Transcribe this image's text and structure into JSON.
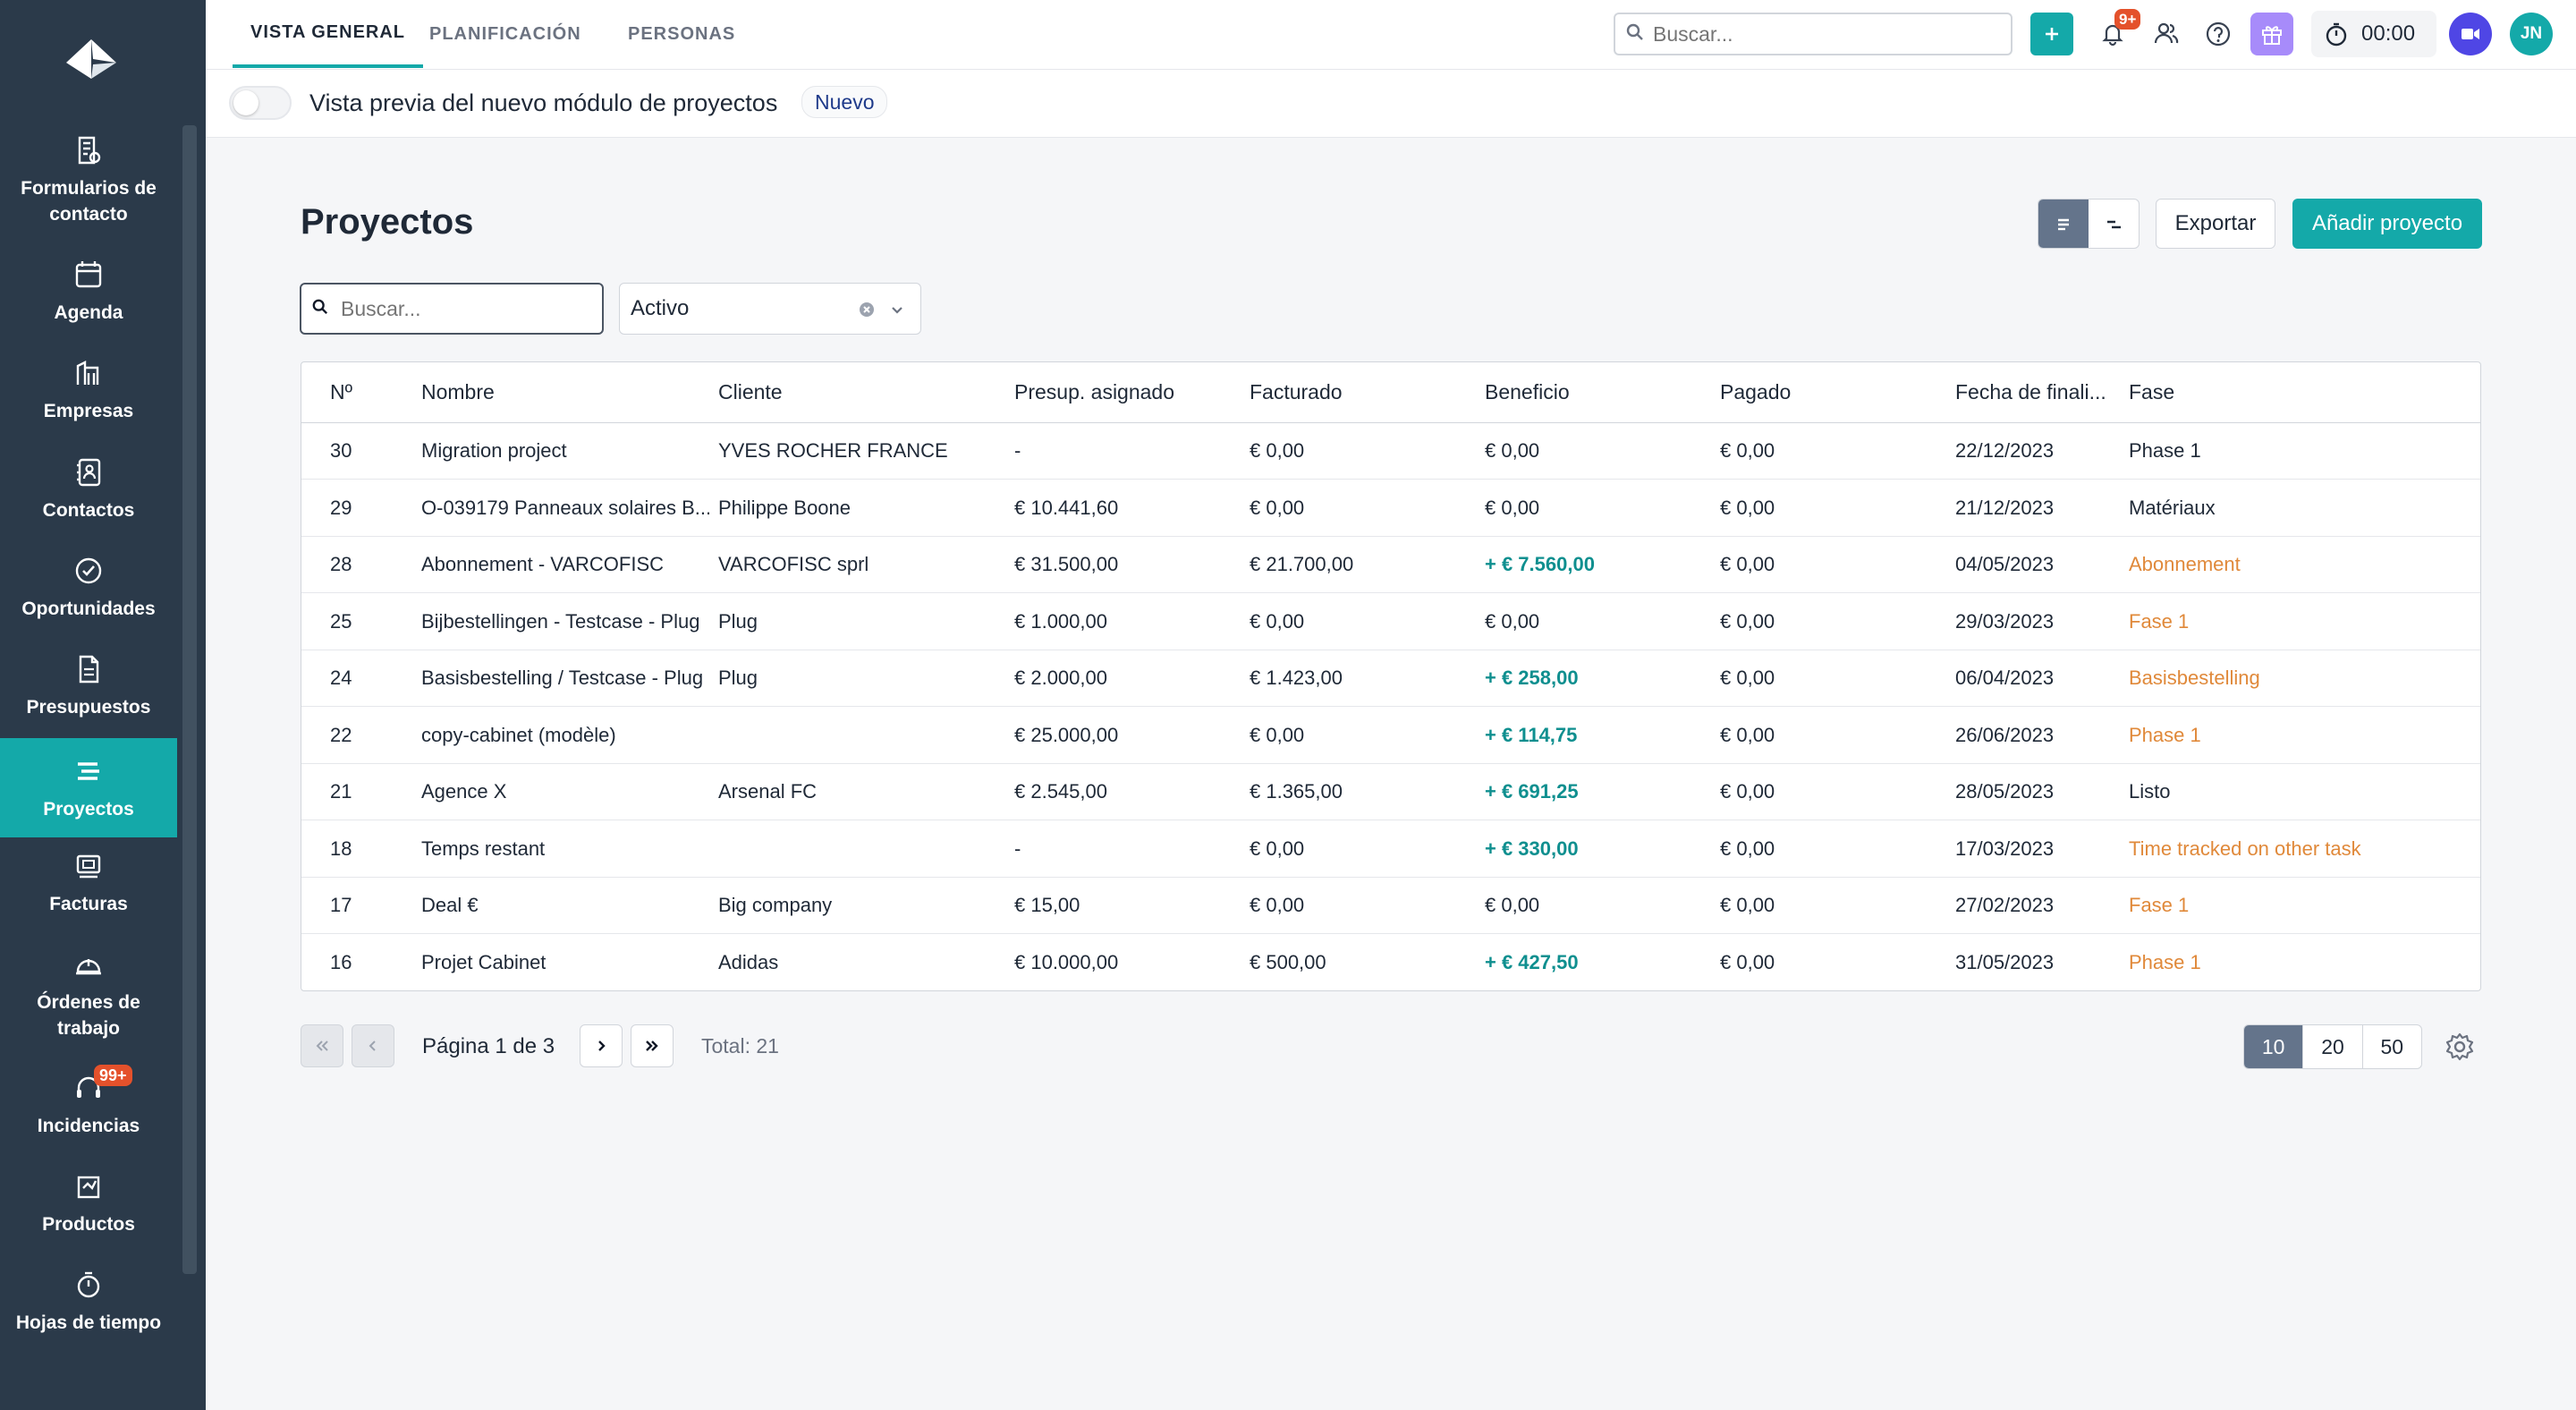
{
  "sidebar": {
    "items": [
      {
        "label": "Formularios de contacto",
        "icon": "form-icon",
        "active": false
      },
      {
        "label": "Agenda",
        "icon": "calendar-icon",
        "active": false
      },
      {
        "label": "Empresas",
        "icon": "building-icon",
        "active": false
      },
      {
        "label": "Contactos",
        "icon": "contacts-book-icon",
        "active": false
      },
      {
        "label": "Oportunidades",
        "icon": "check-circle-icon",
        "active": false
      },
      {
        "label": "Presupuestos",
        "icon": "document-icon",
        "active": false
      },
      {
        "label": "Proyectos",
        "icon": "projects-icon",
        "active": true
      },
      {
        "label": "Facturas",
        "icon": "invoice-icon",
        "active": false
      },
      {
        "label": "Órdenes de trabajo",
        "icon": "hardhat-icon",
        "active": false
      },
      {
        "label": "Incidencias",
        "icon": "headset-icon",
        "active": false,
        "badge": "99+"
      },
      {
        "label": "Productos",
        "icon": "product-icon",
        "active": false
      },
      {
        "label": "Hojas de tiempo",
        "icon": "stopwatch-icon",
        "active": false
      }
    ]
  },
  "topbar": {
    "tabs": [
      {
        "label": "VISTA GENERAL",
        "active": true
      },
      {
        "label": "PLANIFICACIÓN",
        "active": false
      },
      {
        "label": "PERSONAS",
        "active": false
      }
    ],
    "search_placeholder": "Buscar...",
    "notifications_badge": "9+",
    "timer": "00:00",
    "avatar_initials": "JN"
  },
  "preview": {
    "text": "Vista previa del nuevo módulo de proyectos",
    "badge": "Nuevo"
  },
  "main": {
    "title": "Proyectos",
    "export_label": "Exportar",
    "add_label": "Añadir proyecto",
    "search_placeholder": "Buscar...",
    "status_filter": "Activo"
  },
  "table": {
    "columns": [
      "Nº",
      "Nombre",
      "Cliente",
      "Presup. asignado",
      "Facturado",
      "Beneficio",
      "Pagado",
      "Fecha de finali...",
      "Fase"
    ],
    "rows": [
      {
        "num": "30",
        "name": "Migration project",
        "client": "YVES ROCHER FRANCE",
        "budget": " -",
        "invoiced": "€ 0,00",
        "profit": " € 0,00",
        "profit_positive": false,
        "paid": "€ 0,00",
        "end_date": "22/12/2023",
        "phase": "Phase 1",
        "phase_highlight": false
      },
      {
        "num": "29",
        "name": "O-039179 Panneaux solaires B...",
        "client": "Philippe Boone",
        "budget": "€ 10.441,60",
        "invoiced": "€ 0,00",
        "profit": " € 0,00",
        "profit_positive": false,
        "paid": "€ 0,00",
        "end_date": "21/12/2023",
        "phase": "Matériaux",
        "phase_highlight": false
      },
      {
        "num": "28",
        "name": "Abonnement - VARCOFISC",
        "client": "VARCOFISC sprl",
        "budget": "€ 31.500,00",
        "invoiced": "€ 21.700,00",
        "profit": "+ € 7.560,00",
        "profit_positive": true,
        "paid": "€ 0,00",
        "end_date": "04/05/2023",
        "phase": "Abonnement",
        "phase_highlight": true
      },
      {
        "num": "25",
        "name": "Bijbestellingen - Testcase - Plug",
        "client": "Plug",
        "budget": "€ 1.000,00",
        "invoiced": "€ 0,00",
        "profit": " € 0,00",
        "profit_positive": false,
        "paid": "€ 0,00",
        "end_date": "29/03/2023",
        "phase": "Fase 1",
        "phase_highlight": true
      },
      {
        "num": "24",
        "name": "Basisbestelling / Testcase - Plug",
        "client": "Plug",
        "budget": "€ 2.000,00",
        "invoiced": "€ 1.423,00",
        "profit": "+ € 258,00",
        "profit_positive": true,
        "paid": "€ 0,00",
        "end_date": "06/04/2023",
        "phase": "Basisbestelling",
        "phase_highlight": true
      },
      {
        "num": "22",
        "name": "copy-cabinet (modèle)",
        "client": "",
        "budget": "€ 25.000,00",
        "invoiced": "€ 0,00",
        "profit": "+ € 114,75",
        "profit_positive": true,
        "paid": "€ 0,00",
        "end_date": "26/06/2023",
        "phase": "Phase 1",
        "phase_highlight": true
      },
      {
        "num": "21",
        "name": "Agence X",
        "client": "Arsenal FC",
        "budget": "€ 2.545,00",
        "invoiced": "€ 1.365,00",
        "profit": "+ € 691,25",
        "profit_positive": true,
        "paid": "€ 0,00",
        "end_date": "28/05/2023",
        "phase": "Listo",
        "phase_highlight": false
      },
      {
        "num": "18",
        "name": "Temps restant",
        "client": "",
        "budget": " -",
        "invoiced": "€ 0,00",
        "profit": "+ € 330,00",
        "profit_positive": true,
        "paid": "€ 0,00",
        "end_date": "17/03/2023",
        "phase": "Time tracked on other task",
        "phase_highlight": true
      },
      {
        "num": "17",
        "name": "Deal €",
        "client": "Big company",
        "budget": "€ 15,00",
        "invoiced": "€ 0,00",
        "profit": " € 0,00",
        "profit_positive": false,
        "paid": "€ 0,00",
        "end_date": "27/02/2023",
        "phase": "Fase 1",
        "phase_highlight": true
      },
      {
        "num": "16",
        "name": "Projet Cabinet",
        "client": "Adidas",
        "budget": "€ 10.000,00",
        "invoiced": "€ 500,00",
        "profit": "+ € 427,50",
        "profit_positive": true,
        "paid": "€ 0,00",
        "end_date": "31/05/2023",
        "phase": "Phase 1",
        "phase_highlight": true
      }
    ]
  },
  "pagination": {
    "page_info": "Página 1 de 3",
    "total": "Total: 21",
    "page_sizes": [
      "10",
      "20",
      "50"
    ],
    "selected_size": "10"
  },
  "colors": {
    "accent": "#14a9a9",
    "sidebar": "#2b3a4a",
    "positive": "#0f8f8f",
    "phase_highlight": "#e0893a",
    "badge": "#e4512b"
  }
}
